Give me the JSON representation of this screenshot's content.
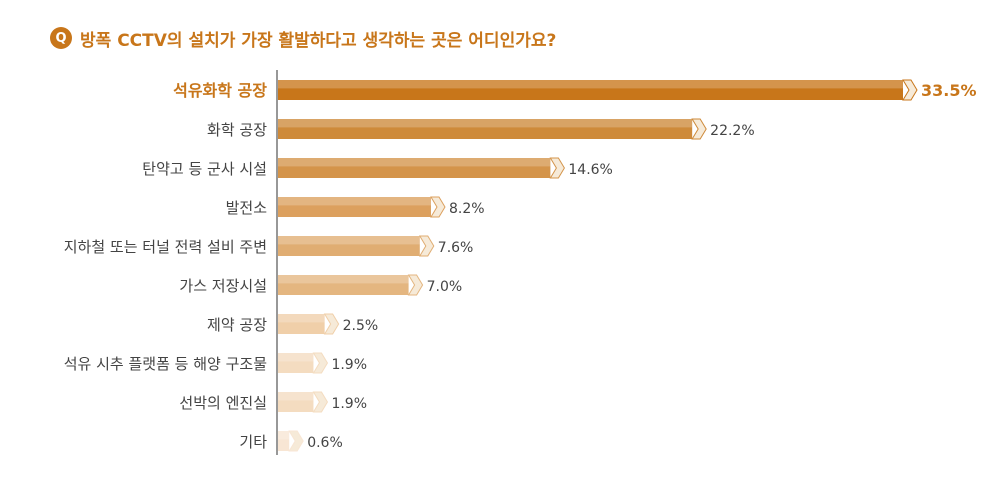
{
  "question": {
    "badge": "Q",
    "title": "방폭 CCTV의 설치가 가장 활발하다고 생각하는 곳은 어디인가요?"
  },
  "chart_data": {
    "type": "bar",
    "orientation": "horizontal",
    "title": "방폭 CCTV의 설치가 가장 활발하다고 생각하는 곳은 어디인가요?",
    "categories": [
      "석유화학 공장",
      "화학 공장",
      "탄약고 등 군사 시설",
      "발전소",
      "지하철 또는 터널 전력 설비 주변",
      "가스 저장시설",
      "제약 공장",
      "석유 시추 플랫폼 등 해양 구조물",
      "선박의 엔진실",
      "기타"
    ],
    "values": [
      33.5,
      22.2,
      14.6,
      8.2,
      7.6,
      7.0,
      2.5,
      1.9,
      1.9,
      0.6
    ],
    "value_labels": [
      "33.5%",
      "22.2%",
      "14.6%",
      "8.2%",
      "7.6%",
      "7.0%",
      "2.5%",
      "1.9%",
      "1.9%",
      "0.6%"
    ],
    "unit": "%",
    "highlight_index": 0,
    "colors": {
      "highlight": "#c8761a",
      "bars": [
        "#c8761a",
        "#ce8a3a",
        "#d4944a",
        "#dca05e",
        "#e0ad72",
        "#e4b680",
        "#f0cfa9",
        "#f4dcc0",
        "#f4dcc0",
        "#f8e6d4"
      ],
      "highlight_text": "#c8761a",
      "text": "#444444",
      "axis": "#777777"
    }
  }
}
